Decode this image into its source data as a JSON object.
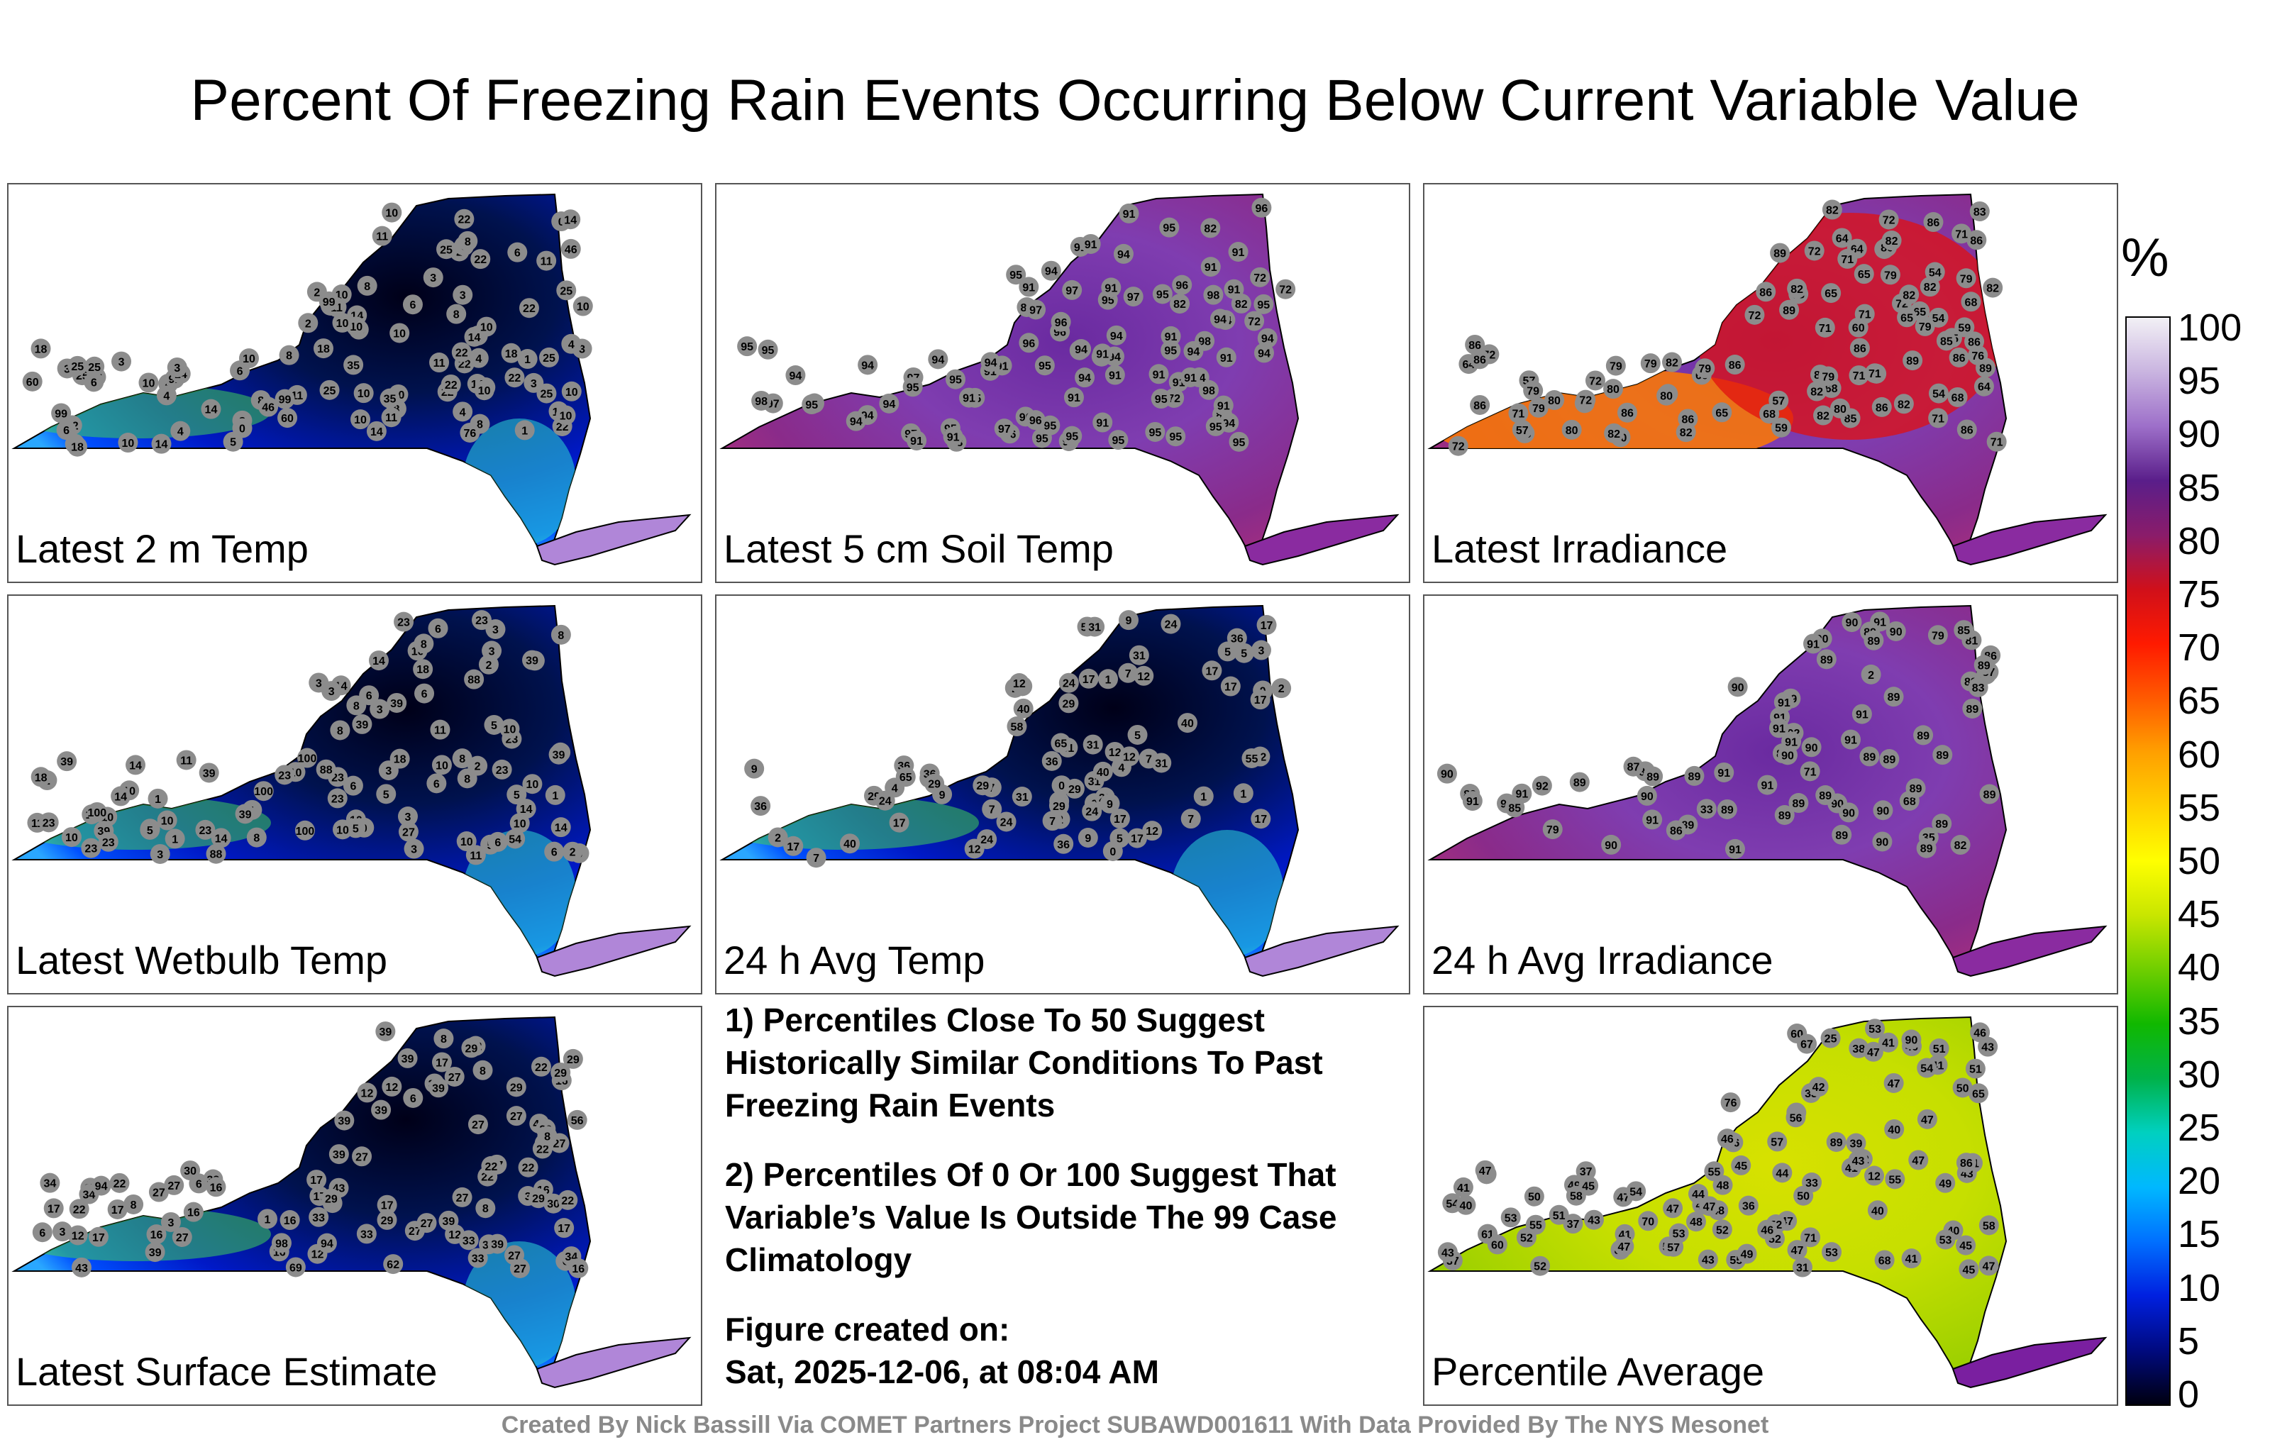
{
  "title": "Percent Of Freezing Rain Events Occurring Below Current Variable Value",
  "panels": [
    {
      "label": "Latest 2 m Temp",
      "scheme": "cold",
      "values": [
        18,
        18,
        14,
        11,
        10,
        4,
        14,
        22,
        10,
        10,
        60,
        6,
        4,
        8,
        6,
        3,
        22,
        3,
        8,
        2,
        0,
        0,
        2,
        1,
        8,
        4,
        4,
        14,
        10,
        1,
        3,
        10,
        2,
        2,
        3,
        4,
        5,
        6,
        11,
        3,
        8,
        11,
        91,
        46,
        46,
        76,
        25,
        4,
        25,
        46,
        22,
        14,
        35,
        25,
        22,
        10,
        10,
        3,
        3,
        10,
        3,
        8,
        25,
        18,
        14,
        11,
        6,
        22,
        25,
        25,
        8,
        14,
        10,
        8,
        10,
        3,
        10,
        14,
        18,
        10,
        25,
        10,
        10,
        11,
        8,
        10,
        6,
        22,
        18,
        35,
        14,
        10,
        22,
        22,
        10,
        11,
        10,
        10,
        22,
        22,
        25,
        60,
        99,
        99,
        99
      ]
    },
    {
      "label": "Latest 5 cm Soil Temp",
      "scheme": "hot",
      "values": [
        82,
        91,
        91,
        94,
        72,
        91,
        94,
        82,
        94,
        97,
        91,
        94,
        82,
        98,
        95,
        91,
        98,
        91,
        95,
        96,
        96,
        95,
        72,
        91,
        82,
        94,
        72,
        98,
        95,
        82,
        91,
        95,
        94,
        91,
        96,
        97,
        91,
        95,
        94,
        94,
        91,
        94,
        95,
        95,
        96,
        95,
        95,
        97,
        94,
        91,
        94,
        96,
        98,
        95,
        95,
        94,
        98,
        95,
        95,
        94,
        94,
        96,
        91,
        95,
        94,
        94,
        91,
        95,
        94,
        97,
        95,
        94,
        91,
        95,
        96,
        94,
        91,
        97,
        95,
        95,
        94,
        91,
        95,
        95,
        91,
        91,
        95,
        72,
        91,
        91,
        95,
        97,
        91,
        91,
        97,
        95,
        91,
        96,
        95
      ]
    },
    {
      "label": "Latest Irradiance",
      "scheme": "hot",
      "values": [
        88,
        89,
        78,
        82,
        64,
        72,
        82,
        65,
        89,
        86,
        80,
        71,
        68,
        54,
        82,
        64,
        86,
        70,
        68,
        65,
        65,
        60,
        59,
        57,
        71,
        72,
        60,
        54,
        71,
        54,
        68,
        57,
        72,
        72,
        65,
        83,
        71,
        64,
        64,
        86,
        79,
        72,
        59,
        65,
        57,
        79,
        86,
        82,
        72,
        80,
        82,
        71,
        86,
        65,
        79,
        80,
        86,
        79,
        72,
        82,
        79,
        80,
        86,
        68,
        71,
        86,
        85,
        82,
        71,
        82,
        72,
        80,
        79,
        86,
        86,
        86,
        82,
        71,
        83,
        86,
        79,
        76,
        86,
        71,
        82,
        86,
        80,
        71,
        79,
        82,
        85,
        82,
        89,
        79,
        86,
        89,
        86,
        80
      ]
    },
    {
      "label": "Latest Wetbulb Temp",
      "scheme": "cold",
      "values": [
        14,
        23,
        11,
        10,
        5,
        23,
        14,
        2,
        6,
        10,
        5,
        88,
        5,
        1,
        6,
        8,
        3,
        23,
        0,
        1,
        3,
        1,
        10,
        5,
        6,
        6,
        3,
        8,
        3,
        2,
        5,
        100,
        54,
        54,
        88,
        39,
        3,
        1,
        3,
        27,
        39,
        5,
        10,
        2,
        23,
        5,
        2,
        8,
        18,
        11,
        23,
        3,
        6,
        39,
        10,
        10,
        14,
        3,
        10,
        8,
        10,
        18,
        3,
        8,
        23,
        3,
        6,
        11,
        14,
        6,
        8,
        10,
        14,
        10,
        23,
        39,
        39,
        14,
        10,
        39,
        23,
        10,
        39,
        10,
        10,
        8,
        8,
        11,
        14,
        23,
        18,
        23,
        23,
        39,
        88,
        100,
        100,
        100
      ]
    },
    {
      "label": "24 h Avg Temp",
      "scheme": "cold",
      "values": [
        9,
        12,
        17,
        17,
        9,
        2,
        1,
        0,
        49,
        31,
        7,
        5,
        5,
        2,
        0,
        9,
        4,
        7,
        2,
        1,
        1,
        58,
        40,
        36,
        31,
        36,
        31,
        17,
        7,
        5,
        2,
        1,
        7,
        3,
        29,
        36,
        31,
        7,
        3,
        0,
        4,
        12,
        40,
        31,
        29,
        17,
        17,
        7,
        12,
        24,
        17,
        7,
        12,
        17,
        5,
        29,
        9,
        24,
        9,
        17,
        17,
        29,
        24,
        17,
        31,
        29,
        12,
        24,
        12,
        17,
        29,
        12,
        24,
        31,
        36,
        24,
        36,
        40,
        36,
        29,
        40,
        55,
        65,
        65,
        58
      ]
    },
    {
      "label": "24 h Avg Irradiance",
      "scheme": "hot",
      "values": [
        79,
        81,
        89,
        89,
        68,
        71,
        89,
        79,
        84,
        86,
        82,
        89,
        35,
        2,
        33,
        90,
        90,
        91,
        89,
        89,
        91,
        91,
        90,
        90,
        90,
        89,
        90,
        91,
        90,
        89,
        91,
        89,
        91,
        89,
        89,
        90,
        91,
        92,
        89,
        89,
        91,
        89,
        85,
        90,
        91,
        89,
        89,
        87,
        85,
        89,
        89,
        89,
        90,
        91,
        89,
        91,
        89,
        90,
        91,
        92,
        87,
        91,
        89,
        91,
        89,
        90,
        90,
        83,
        89,
        89,
        89,
        79,
        86,
        89,
        91
      ]
    },
    {
      "label": "Latest Surface Estimate",
      "scheme": "cold",
      "values": [
        30,
        29,
        27,
        22,
        8,
        12,
        27,
        33,
        27,
        22,
        8,
        16,
        6,
        6,
        12,
        33,
        12,
        16,
        29,
        1,
        3,
        3,
        8,
        17,
        12,
        16,
        17,
        43,
        29,
        16,
        8,
        6,
        22,
        56,
        43,
        39,
        27,
        3,
        33,
        39,
        43,
        33,
        27,
        6,
        27,
        62,
        39,
        17,
        33,
        27,
        27,
        12,
        29,
        22,
        33,
        39,
        16,
        16,
        27,
        17,
        22,
        6,
        27,
        17,
        27,
        8,
        29,
        29,
        39,
        17,
        27,
        22,
        39,
        34,
        29,
        22,
        30,
        16,
        27,
        27,
        34,
        39,
        22,
        39,
        34,
        33,
        39,
        16,
        17,
        22,
        27,
        17,
        29,
        39,
        69,
        94,
        94,
        98
      ]
    },
    {
      "label": "Percentile Average",
      "scheme": "avg",
      "values": [
        46,
        47,
        39,
        38,
        50,
        40,
        33,
        41,
        71,
        46,
        44,
        37,
        26,
        41,
        54,
        43,
        12,
        25,
        31,
        36,
        43,
        41,
        41,
        37,
        40,
        49,
        41,
        33,
        37,
        40,
        83,
        61,
        60,
        68,
        54,
        47,
        65,
        53,
        51,
        57,
        56,
        53,
        70,
        67,
        52,
        41,
        47,
        42,
        46,
        41,
        50,
        49,
        47,
        55,
        47,
        52,
        48,
        46,
        44,
        40,
        42,
        47,
        51,
        47,
        48,
        45,
        57,
        60,
        43,
        45,
        49,
        43,
        47,
        51,
        43,
        43,
        47,
        52,
        52,
        55,
        45,
        47,
        45,
        46,
        47,
        46,
        47,
        53,
        52,
        55,
        48,
        53,
        55,
        58,
        51,
        54,
        50,
        49,
        53,
        76,
        86,
        58,
        89,
        90
      ]
    }
  ],
  "notes": [
    "1) Percentiles Close To 50 Suggest Historically Similar Conditions To Past Freezing Rain Events",
    "2) Percentiles Of 0 Or 100 Suggest That Variable’s Value Is Outside The 99 Case Climatology"
  ],
  "created_label": "Figure created on:",
  "created_date": "Sat, 2025-12-06, at 08:04 AM",
  "colorbar": {
    "unit": "%",
    "ticks": [
      "100",
      "95",
      "90",
      "85",
      "80",
      "75",
      "70",
      "65",
      "60",
      "55",
      "50",
      "45",
      "40",
      "35",
      "30",
      "25",
      "20",
      "15",
      "10",
      "5",
      "0"
    ]
  },
  "credit": "Created By Nick Bassill Via COMET Partners Project SUBAWD001611 With Data Provided By The NYS Mesonet"
}
